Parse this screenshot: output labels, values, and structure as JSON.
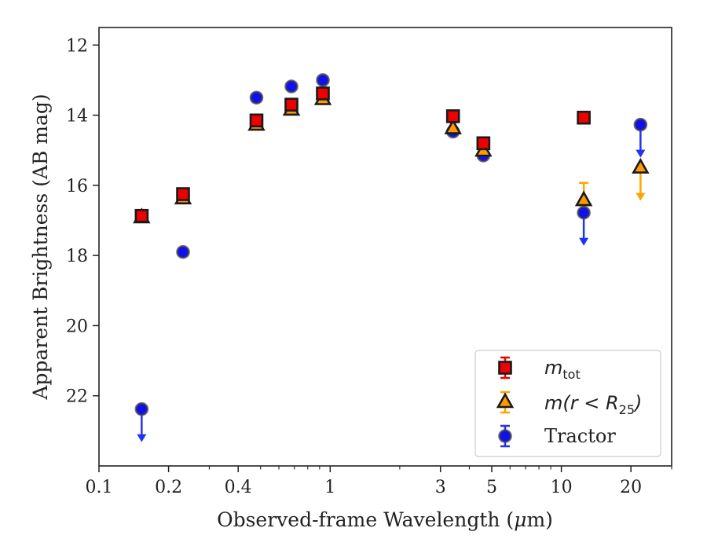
{
  "chart_data": {
    "type": "scatter",
    "xlabel_main": "Observed-frame Wavelength (",
    "xlabel_mu": "μ",
    "xlabel_end": "m)",
    "ylabel": "Apparent Brightness (AB mag)",
    "xscale": "log",
    "xlim": [
      0.1,
      30
    ],
    "ylim": [
      24,
      11.5
    ],
    "y_inverted": true,
    "grid": false,
    "legend_position": "lower-right",
    "x_ticks": [
      {
        "value": 0.1,
        "label": "0.1"
      },
      {
        "value": 0.2,
        "label": "0.2"
      },
      {
        "value": 0.4,
        "label": "0.4"
      },
      {
        "value": 1,
        "label": "1"
      },
      {
        "value": 3,
        "label": "3"
      },
      {
        "value": 5,
        "label": "5"
      },
      {
        "value": 10,
        "label": "10"
      },
      {
        "value": 20,
        "label": "20"
      }
    ],
    "y_ticks": [
      {
        "value": 12,
        "label": "12"
      },
      {
        "value": 14,
        "label": "14"
      },
      {
        "value": 16,
        "label": "16"
      },
      {
        "value": 18,
        "label": "18"
      },
      {
        "value": 20,
        "label": "20"
      },
      {
        "value": 22,
        "label": "22"
      }
    ],
    "series": [
      {
        "name_main": "m",
        "name_sub": "tot",
        "marker": "square",
        "color": "#ee0000",
        "errcolor": "#ee0000",
        "points": [
          {
            "x": 0.153,
            "y": 16.87
          },
          {
            "x": 0.231,
            "y": 16.25
          },
          {
            "x": 0.48,
            "y": 14.15
          },
          {
            "x": 0.68,
            "y": 13.7
          },
          {
            "x": 0.93,
            "y": 13.38
          },
          {
            "x": 3.4,
            "y": 14.03
          },
          {
            "x": 4.6,
            "y": 14.8
          },
          {
            "x": 12.5,
            "y": 14.07
          }
        ]
      },
      {
        "name_main": "m",
        "name_paren": "(r < R",
        "name_sub": "25",
        "name_close": ")",
        "marker": "triangle",
        "color": "#ff9900",
        "errcolor": "#ffa500",
        "points": [
          {
            "x": 0.153,
            "y": 16.92
          },
          {
            "x": 0.231,
            "y": 16.38
          },
          {
            "x": 0.48,
            "y": 14.28
          },
          {
            "x": 0.68,
            "y": 13.85
          },
          {
            "x": 0.93,
            "y": 13.55
          },
          {
            "x": 3.4,
            "y": 14.38
          },
          {
            "x": 4.6,
            "y": 15.02
          },
          {
            "x": 12.5,
            "y": 16.43,
            "err_up": 0.5
          },
          {
            "x": 22,
            "y": 15.5,
            "upper_limit": true
          }
        ]
      },
      {
        "name": "Tractor",
        "marker": "circle",
        "color": "#1010ee",
        "errcolor": "#2233ee",
        "points": [
          {
            "x": 0.153,
            "y": 22.38,
            "upper_limit": true
          },
          {
            "x": 0.231,
            "y": 17.9
          },
          {
            "x": 0.48,
            "y": 13.5
          },
          {
            "x": 0.68,
            "y": 13.18
          },
          {
            "x": 0.93,
            "y": 13.0
          },
          {
            "x": 3.4,
            "y": 14.47
          },
          {
            "x": 4.6,
            "y": 15.15
          },
          {
            "x": 12.5,
            "y": 16.78,
            "upper_limit": true
          },
          {
            "x": 22,
            "y": 14.27,
            "upper_limit": true
          }
        ]
      }
    ]
  }
}
